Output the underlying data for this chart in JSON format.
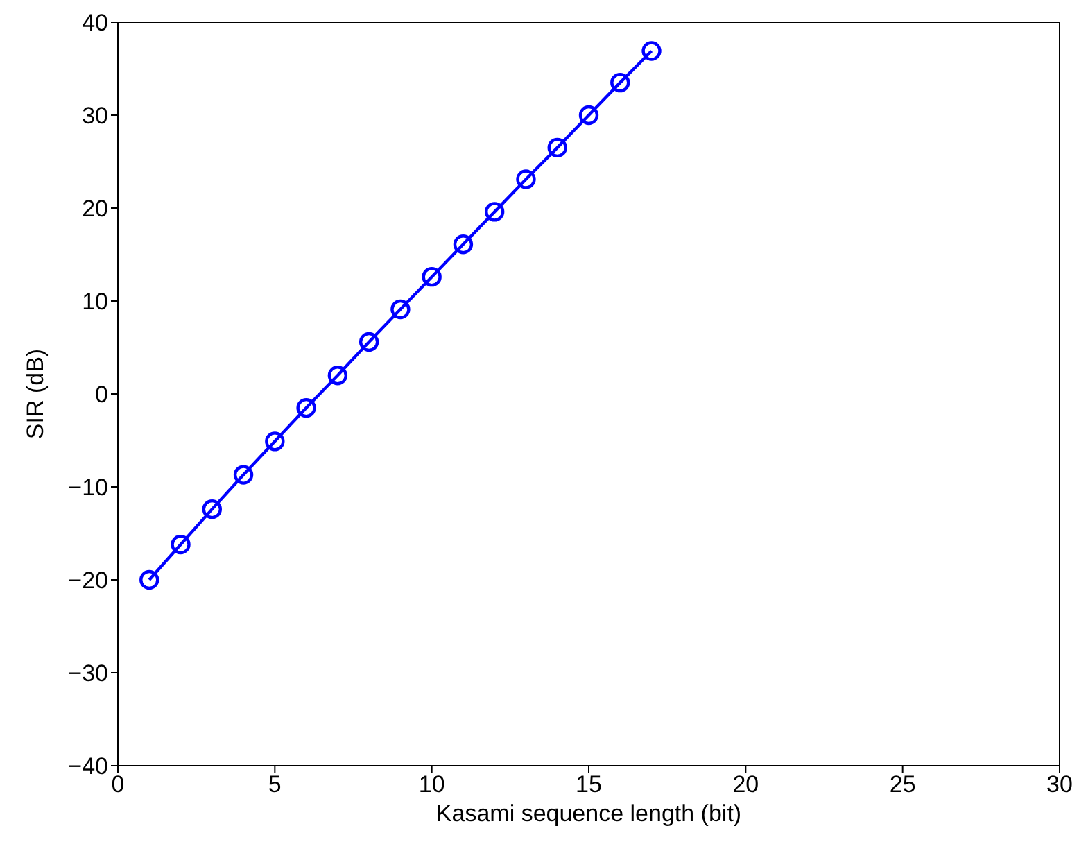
{
  "chart_data": {
    "type": "line",
    "xlabel": "Kasami sequence length (bit)",
    "ylabel": "SIR (dB)",
    "x": [
      1,
      2,
      3,
      4,
      5,
      6,
      7,
      8,
      9,
      10,
      11,
      12,
      13,
      14,
      15,
      16,
      17
    ],
    "series": [
      {
        "color": "#0000ff",
        "values": [
          -20,
          -16.2,
          -12.4,
          -8.7,
          -5.1,
          -1.5,
          2.0,
          5.6,
          9.1,
          12.6,
          16.1,
          19.6,
          23.1,
          26.5,
          30.0,
          33.5,
          36.9
        ]
      }
    ],
    "xlim": [
      0,
      30
    ],
    "xticks": [
      0,
      5,
      10,
      15,
      20,
      25,
      30
    ],
    "ylim": [
      -40,
      40
    ],
    "yticks": [
      -40,
      -30,
      -20,
      -10,
      0,
      10,
      20,
      30,
      40
    ],
    "grid": false,
    "legend": false,
    "marker": "circle",
    "line_style": "solid"
  }
}
